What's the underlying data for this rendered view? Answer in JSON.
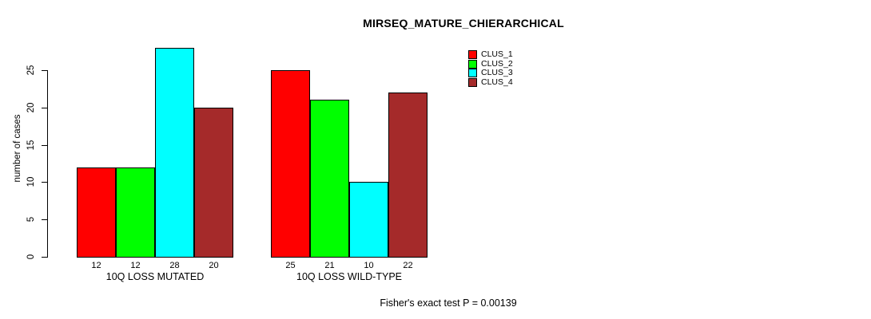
{
  "chart_data": {
    "type": "bar",
    "title": "MIRSEQ_MATURE_CHIERARCHICAL",
    "xlabel": "",
    "ylabel": "number of cases",
    "categories": [
      "10Q LOSS MUTATED",
      "10Q LOSS WILD-TYPE"
    ],
    "series": [
      {
        "name": "CLUS_1",
        "color": "#ff0000",
        "values": [
          12,
          25
        ]
      },
      {
        "name": "CLUS_2",
        "color": "#00ff00",
        "values": [
          12,
          21
        ]
      },
      {
        "name": "CLUS_3",
        "color": "#00ffff",
        "values": [
          28,
          10
        ]
      },
      {
        "name": "CLUS_4",
        "color": "#a52a2a",
        "values": [
          20,
          22
        ]
      }
    ],
    "yticks": [
      0,
      5,
      10,
      15,
      20,
      25
    ],
    "ylim": [
      0,
      25
    ],
    "grid": false,
    "bar_value_labels": true,
    "legend_position": "top-right",
    "annotation": "Fisher's exact test P = 0.00139"
  }
}
